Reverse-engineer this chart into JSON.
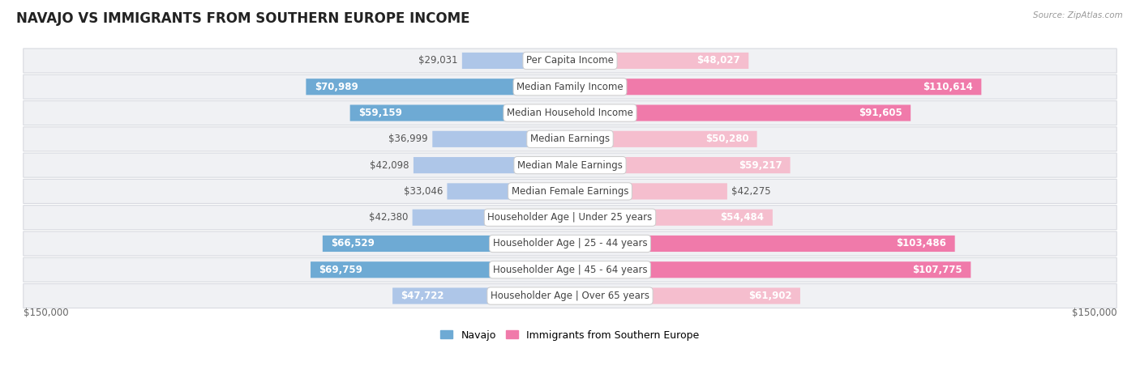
{
  "title": "NAVAJO VS IMMIGRANTS FROM SOUTHERN EUROPE INCOME",
  "source": "Source: ZipAtlas.com",
  "categories": [
    "Per Capita Income",
    "Median Family Income",
    "Median Household Income",
    "Median Earnings",
    "Median Male Earnings",
    "Median Female Earnings",
    "Householder Age | Under 25 years",
    "Householder Age | 25 - 44 years",
    "Householder Age | 45 - 64 years",
    "Householder Age | Over 65 years"
  ],
  "navajo_values": [
    29031,
    70989,
    59159,
    36999,
    42098,
    33046,
    42380,
    66529,
    69759,
    47722
  ],
  "immigrant_values": [
    48027,
    110614,
    91605,
    50280,
    59217,
    42275,
    54484,
    103486,
    107775,
    61902
  ],
  "navajo_labels": [
    "$29,031",
    "$70,989",
    "$59,159",
    "$36,999",
    "$42,098",
    "$33,046",
    "$42,380",
    "$66,529",
    "$69,759",
    "$47,722"
  ],
  "immigrant_labels": [
    "$48,027",
    "$110,614",
    "$91,605",
    "$50,280",
    "$59,217",
    "$42,275",
    "$54,484",
    "$103,486",
    "$107,775",
    "$61,902"
  ],
  "navajo_color_light": "#aec6e8",
  "navajo_color_dark": "#6eaad4",
  "immigrant_color_light": "#f5bece",
  "immigrant_color_dark": "#f07aaa",
  "max_value": 150000,
  "background_color": "#ffffff",
  "row_bg_color": "#f0f1f4",
  "bar_height": 0.62,
  "label_fontsize": 8.5,
  "title_fontsize": 12,
  "category_fontsize": 8.5,
  "legend_navajo": "Navajo",
  "legend_immigrant": "Immigrants from Southern Europe",
  "white_label_threshold": 0.3
}
